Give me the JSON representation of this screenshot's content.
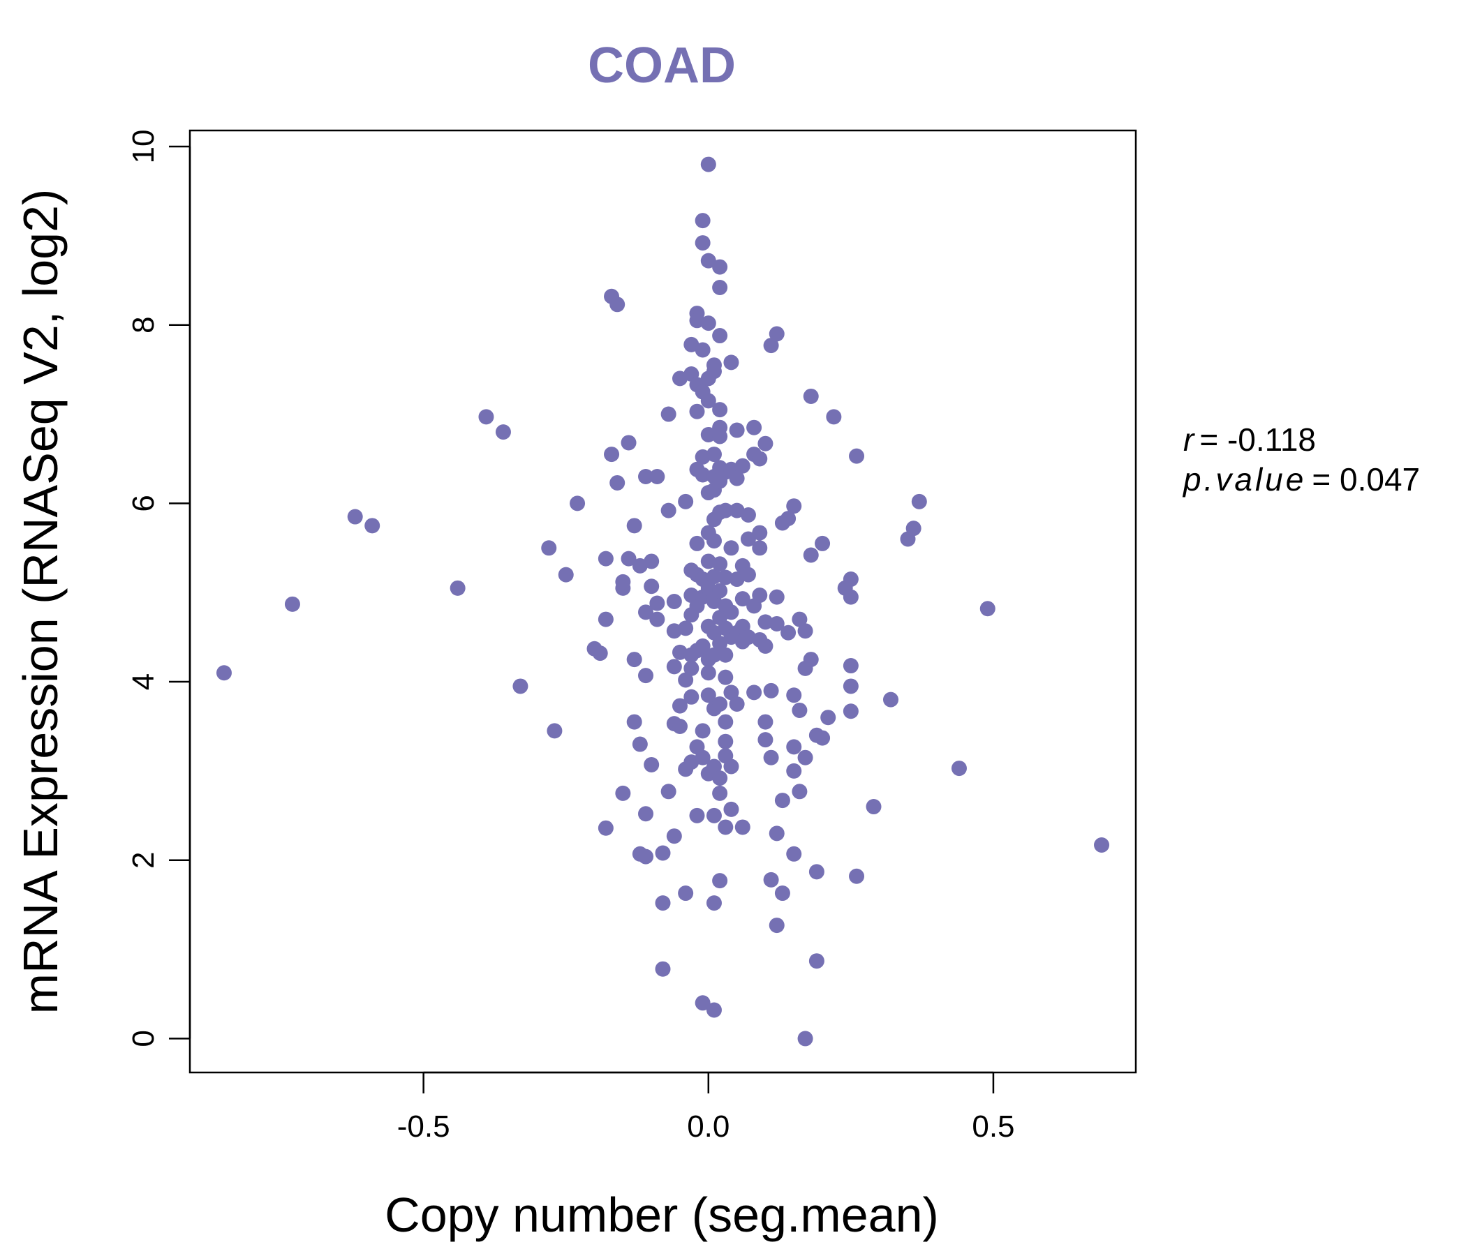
{
  "chart_data": {
    "type": "scatter",
    "title": "COAD",
    "xlabel": "Copy number (seg.mean)",
    "ylabel": "mRNA Expression (RNASeq V2, log2)",
    "xlim": [
      -0.91,
      0.75
    ],
    "ylim": [
      -0.38,
      10.18
    ],
    "xticks": [
      -0.5,
      0.0,
      0.5
    ],
    "xtick_labels": [
      "-0.5",
      "0.0",
      "0.5"
    ],
    "yticks": [
      0,
      2,
      4,
      6,
      8,
      10
    ],
    "ytick_labels": [
      "0",
      "2",
      "4",
      "6",
      "8",
      "10"
    ],
    "grid": false,
    "colors": {
      "points": "#7570b3",
      "title": "#7570b3",
      "axis": "#000000"
    },
    "stats": {
      "r_symbol": "r",
      "r_eq": "= ",
      "r_value": "-0.118",
      "p_symbol": "p.value",
      "p_eq": "= ",
      "p_value": "0.047"
    },
    "points": [
      [
        -0.85,
        4.1
      ],
      [
        -0.73,
        4.87
      ],
      [
        -0.62,
        5.85
      ],
      [
        -0.59,
        5.75
      ],
      [
        -0.44,
        5.05
      ],
      [
        -0.39,
        6.97
      ],
      [
        -0.36,
        6.8
      ],
      [
        -0.33,
        3.95
      ],
      [
        -0.28,
        5.5
      ],
      [
        -0.27,
        3.45
      ],
      [
        -0.25,
        5.2
      ],
      [
        -0.23,
        6.0
      ],
      [
        -0.2,
        4.37
      ],
      [
        -0.19,
        4.32
      ],
      [
        -0.18,
        5.38
      ],
      [
        -0.18,
        4.7
      ],
      [
        -0.17,
        6.55
      ],
      [
        -0.17,
        8.32
      ],
      [
        -0.16,
        8.23
      ],
      [
        -0.16,
        6.23
      ],
      [
        -0.15,
        5.05
      ],
      [
        -0.15,
        5.12
      ],
      [
        -0.18,
        2.36
      ],
      [
        -0.15,
        2.75
      ],
      [
        -0.14,
        6.68
      ],
      [
        -0.14,
        5.38
      ],
      [
        -0.13,
        4.25
      ],
      [
        -0.13,
        3.55
      ],
      [
        -0.13,
        5.75
      ],
      [
        -0.12,
        5.3
      ],
      [
        -0.12,
        3.3
      ],
      [
        -0.12,
        2.07
      ],
      [
        -0.11,
        6.3
      ],
      [
        -0.11,
        4.78
      ],
      [
        -0.11,
        4.07
      ],
      [
        -0.11,
        2.52
      ],
      [
        -0.11,
        2.04
      ],
      [
        -0.1,
        5.35
      ],
      [
        -0.1,
        5.07
      ],
      [
        -0.1,
        3.07
      ],
      [
        -0.09,
        6.3
      ],
      [
        -0.09,
        4.88
      ],
      [
        -0.09,
        4.7
      ],
      [
        -0.08,
        2.08
      ],
      [
        -0.08,
        1.52
      ],
      [
        -0.08,
        0.78
      ],
      [
        -0.07,
        7.0
      ],
      [
        -0.07,
        5.92
      ],
      [
        -0.07,
        2.77
      ],
      [
        -0.06,
        4.57
      ],
      [
        -0.06,
        4.17
      ],
      [
        -0.06,
        4.9
      ],
      [
        -0.06,
        3.53
      ],
      [
        -0.06,
        2.27
      ],
      [
        -0.05,
        7.4
      ],
      [
        -0.05,
        4.33
      ],
      [
        -0.05,
        3.73
      ],
      [
        -0.05,
        3.5
      ],
      [
        -0.04,
        6.02
      ],
      [
        -0.04,
        4.6
      ],
      [
        -0.04,
        4.02
      ],
      [
        -0.04,
        3.02
      ],
      [
        -0.04,
        1.63
      ],
      [
        -0.03,
        7.78
      ],
      [
        -0.03,
        7.45
      ],
      [
        -0.03,
        5.25
      ],
      [
        -0.03,
        4.97
      ],
      [
        -0.03,
        4.75
      ],
      [
        -0.03,
        4.3
      ],
      [
        -0.03,
        4.15
      ],
      [
        -0.03,
        3.83
      ],
      [
        -0.03,
        3.1
      ],
      [
        -0.02,
        8.13
      ],
      [
        -0.02,
        8.05
      ],
      [
        -0.02,
        7.33
      ],
      [
        -0.02,
        7.03
      ],
      [
        -0.02,
        6.38
      ],
      [
        -0.02,
        5.55
      ],
      [
        -0.02,
        5.2
      ],
      [
        -0.02,
        4.85
      ],
      [
        -0.02,
        4.35
      ],
      [
        -0.02,
        3.27
      ],
      [
        -0.02,
        2.5
      ],
      [
        -0.01,
        9.17
      ],
      [
        -0.01,
        8.92
      ],
      [
        -0.01,
        7.72
      ],
      [
        -0.01,
        7.25
      ],
      [
        -0.01,
        6.52
      ],
      [
        -0.01,
        6.32
      ],
      [
        -0.01,
        5.15
      ],
      [
        -0.01,
        4.95
      ],
      [
        -0.01,
        4.4
      ],
      [
        -0.01,
        3.45
      ],
      [
        -0.01,
        3.15
      ],
      [
        -0.01,
        0.4
      ],
      [
        0.0,
        8.02
      ],
      [
        0.0,
        7.4
      ],
      [
        0.0,
        7.15
      ],
      [
        0.0,
        6.77
      ],
      [
        0.0,
        6.12
      ],
      [
        0.0,
        5.67
      ],
      [
        0.0,
        5.35
      ],
      [
        0.0,
        5.05
      ],
      [
        0.0,
        4.62
      ],
      [
        0.0,
        4.25
      ],
      [
        0.0,
        4.1
      ],
      [
        0.0,
        3.85
      ],
      [
        0.0,
        2.97
      ],
      [
        0.0,
        9.8
      ],
      [
        0.0,
        8.72
      ],
      [
        0.01,
        7.55
      ],
      [
        0.01,
        7.48
      ],
      [
        0.01,
        6.55
      ],
      [
        0.01,
        6.3
      ],
      [
        0.01,
        6.15
      ],
      [
        0.01,
        5.82
      ],
      [
        0.01,
        5.58
      ],
      [
        0.01,
        5.18
      ],
      [
        0.01,
        4.9
      ],
      [
        0.01,
        4.55
      ],
      [
        0.01,
        4.3
      ],
      [
        0.01,
        3.7
      ],
      [
        0.01,
        3.05
      ],
      [
        0.01,
        2.5
      ],
      [
        0.01,
        1.52
      ],
      [
        0.01,
        0.32
      ],
      [
        0.02,
        8.65
      ],
      [
        0.02,
        8.42
      ],
      [
        0.02,
        7.88
      ],
      [
        0.02,
        7.05
      ],
      [
        0.02,
        6.85
      ],
      [
        0.02,
        6.75
      ],
      [
        0.02,
        6.4
      ],
      [
        0.02,
        6.25
      ],
      [
        0.02,
        5.9
      ],
      [
        0.02,
        5.32
      ],
      [
        0.02,
        5.02
      ],
      [
        0.02,
        4.72
      ],
      [
        0.02,
        4.43
      ],
      [
        0.02,
        3.75
      ],
      [
        0.02,
        2.92
      ],
      [
        0.02,
        2.75
      ],
      [
        0.02,
        1.77
      ],
      [
        0.03,
        6.35
      ],
      [
        0.03,
        5.92
      ],
      [
        0.03,
        5.17
      ],
      [
        0.03,
        4.85
      ],
      [
        0.03,
        4.6
      ],
      [
        0.03,
        4.3
      ],
      [
        0.03,
        4.05
      ],
      [
        0.03,
        3.55
      ],
      [
        0.03,
        3.33
      ],
      [
        0.03,
        3.17
      ],
      [
        0.03,
        2.37
      ],
      [
        0.04,
        7.58
      ],
      [
        0.04,
        6.38
      ],
      [
        0.04,
        5.5
      ],
      [
        0.04,
        4.78
      ],
      [
        0.04,
        4.5
      ],
      [
        0.04,
        3.88
      ],
      [
        0.04,
        3.05
      ],
      [
        0.04,
        2.57
      ],
      [
        0.05,
        6.82
      ],
      [
        0.05,
        6.28
      ],
      [
        0.05,
        5.92
      ],
      [
        0.05,
        5.15
      ],
      [
        0.05,
        4.55
      ],
      [
        0.05,
        3.75
      ],
      [
        0.06,
        6.42
      ],
      [
        0.06,
        5.3
      ],
      [
        0.06,
        4.93
      ],
      [
        0.06,
        4.62
      ],
      [
        0.06,
        4.45
      ],
      [
        0.06,
        2.37
      ],
      [
        0.07,
        5.87
      ],
      [
        0.07,
        5.6
      ],
      [
        0.07,
        5.2
      ],
      [
        0.07,
        4.5
      ],
      [
        0.08,
        6.85
      ],
      [
        0.08,
        6.55
      ],
      [
        0.08,
        4.85
      ],
      [
        0.08,
        3.88
      ],
      [
        0.09,
        6.5
      ],
      [
        0.09,
        5.67
      ],
      [
        0.09,
        5.5
      ],
      [
        0.09,
        4.97
      ],
      [
        0.09,
        4.47
      ],
      [
        0.1,
        6.67
      ],
      [
        0.1,
        4.67
      ],
      [
        0.1,
        4.4
      ],
      [
        0.1,
        3.55
      ],
      [
        0.1,
        3.35
      ],
      [
        0.11,
        7.77
      ],
      [
        0.11,
        3.9
      ],
      [
        0.11,
        3.15
      ],
      [
        0.11,
        1.78
      ],
      [
        0.12,
        7.9
      ],
      [
        0.12,
        4.95
      ],
      [
        0.12,
        4.65
      ],
      [
        0.12,
        2.3
      ],
      [
        0.12,
        1.27
      ],
      [
        0.13,
        5.78
      ],
      [
        0.13,
        2.67
      ],
      [
        0.13,
        1.63
      ],
      [
        0.14,
        5.83
      ],
      [
        0.14,
        4.55
      ],
      [
        0.15,
        5.97
      ],
      [
        0.15,
        3.85
      ],
      [
        0.15,
        3.27
      ],
      [
        0.15,
        3.0
      ],
      [
        0.15,
        2.07
      ],
      [
        0.16,
        4.7
      ],
      [
        0.16,
        3.68
      ],
      [
        0.16,
        2.77
      ],
      [
        0.17,
        4.57
      ],
      [
        0.17,
        4.15
      ],
      [
        0.17,
        3.15
      ],
      [
        0.18,
        7.2
      ],
      [
        0.18,
        5.42
      ],
      [
        0.18,
        4.25
      ],
      [
        0.19,
        3.4
      ],
      [
        0.19,
        1.87
      ],
      [
        0.19,
        0.87
      ],
      [
        0.2,
        5.55
      ],
      [
        0.2,
        3.37
      ],
      [
        0.17,
        0.0
      ],
      [
        0.21,
        3.6
      ],
      [
        0.22,
        6.97
      ],
      [
        0.24,
        5.05
      ],
      [
        0.25,
        5.15
      ],
      [
        0.25,
        4.95
      ],
      [
        0.25,
        4.18
      ],
      [
        0.25,
        3.95
      ],
      [
        0.25,
        3.67
      ],
      [
        0.26,
        6.53
      ],
      [
        0.26,
        1.82
      ],
      [
        0.29,
        2.6
      ],
      [
        0.32,
        3.8
      ],
      [
        0.35,
        5.6
      ],
      [
        0.36,
        5.72
      ],
      [
        0.37,
        6.02
      ],
      [
        0.44,
        3.03
      ],
      [
        0.49,
        4.82
      ],
      [
        0.69,
        2.17
      ]
    ]
  }
}
